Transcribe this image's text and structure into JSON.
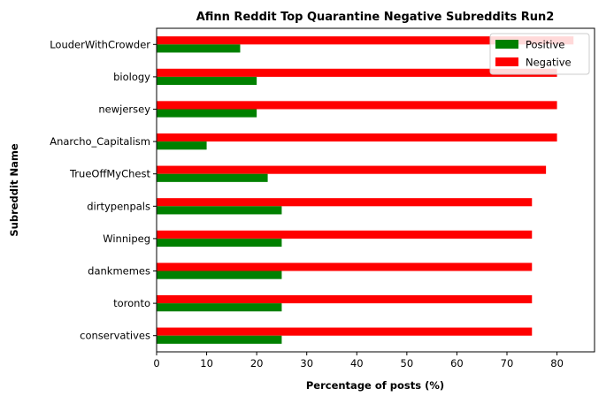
{
  "chart_data": {
    "type": "bar",
    "orientation": "horizontal",
    "title": "Afinn Reddit Top Quarantine Negative Subreddits Run2",
    "xlabel": "Percentage of posts (%)",
    "ylabel": "Subreddit Name",
    "xlim": [
      0,
      87.5
    ],
    "xticks": [
      0,
      10,
      20,
      30,
      40,
      50,
      60,
      70,
      80
    ],
    "categories": [
      "LouderWithCrowder",
      "biology",
      "newjersey",
      "Anarcho_Capitalism",
      "TrueOffMyChest",
      "dirtypenpals",
      "Winnipeg",
      "dankmemes",
      "toronto",
      "conservatives"
    ],
    "series": [
      {
        "name": "Positive",
        "color": "#008000",
        "values": [
          16.7,
          20,
          20,
          10,
          22.2,
          25,
          25,
          25,
          25,
          25
        ]
      },
      {
        "name": "Negative",
        "color": "#ff0000",
        "values": [
          83.3,
          80,
          80,
          80,
          77.8,
          75,
          75,
          75,
          75,
          75
        ]
      }
    ],
    "legend": "top-right",
    "grid": false
  }
}
